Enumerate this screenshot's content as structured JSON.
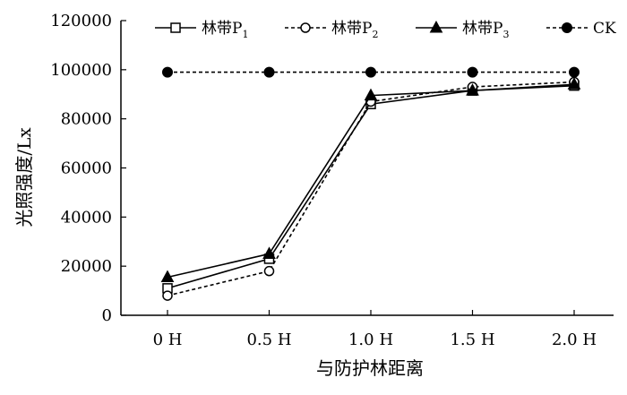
{
  "chart_data": {
    "type": "line",
    "title": "",
    "xlabel": "与防护林距离",
    "ylabel": "光照强度/Lx",
    "categories": [
      "0 H",
      "0.5 H",
      "1.0 H",
      "1.5 H",
      "2.0 H"
    ],
    "ylim": [
      0,
      120000
    ],
    "yticks": [
      0,
      20000,
      40000,
      60000,
      80000,
      100000,
      120000
    ],
    "grid": false,
    "legend_position": "top",
    "series": [
      {
        "name": "林带P1",
        "label_main": "林带P",
        "label_sub": "1",
        "marker": "open-square",
        "line": "solid",
        "color": "#000000",
        "values": [
          11000,
          23000,
          86000,
          91500,
          93500
        ]
      },
      {
        "name": "林带P2",
        "label_main": "林带P",
        "label_sub": "2",
        "marker": "open-circle",
        "line": "dashed",
        "color": "#000000",
        "values": [
          8000,
          18000,
          87000,
          93000,
          95000
        ]
      },
      {
        "name": "林带P3",
        "label_main": "林带P",
        "label_sub": "3",
        "marker": "filled-triangle",
        "line": "solid",
        "color": "#000000",
        "values": [
          15500,
          25000,
          89500,
          91500,
          94000
        ]
      },
      {
        "name": "CK",
        "label_main": "CK",
        "label_sub": "",
        "marker": "filled-circle",
        "line": "dashed",
        "color": "#000000",
        "values": [
          99000,
          99000,
          99000,
          99000,
          99000
        ]
      }
    ]
  }
}
